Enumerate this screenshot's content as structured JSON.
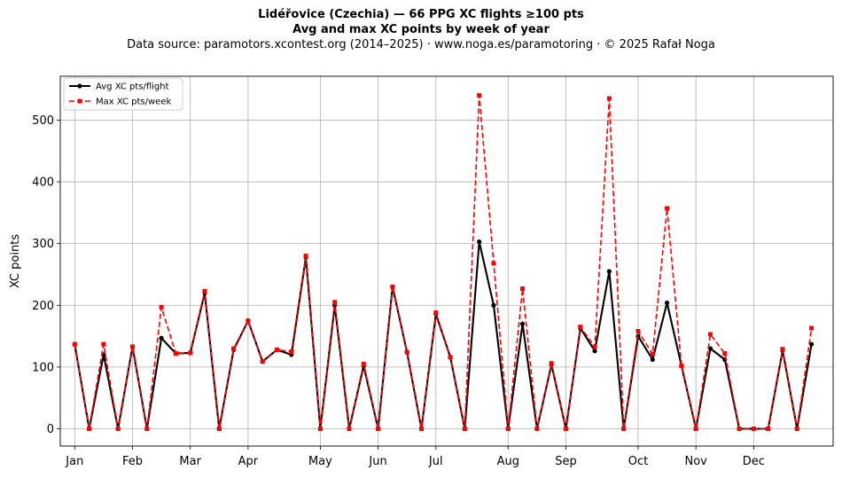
{
  "chart_data": {
    "type": "line",
    "title": "Lidéřovice (Czechia)  —  66 PPG XC flights ≥100 pts",
    "subtitle": "Avg and max XC points by week of year",
    "source": "Data source: paramotors.xcontest.org (2014–2025)  ·  www.noga.es/paramotoring  ·  © 2025 Rafał Noga",
    "xlabel": "",
    "ylabel": "XC points",
    "xlim": [
      -1.0,
      52.5
    ],
    "ylim": [
      -28,
      571
    ],
    "yticks": [
      0,
      100,
      200,
      300,
      400,
      500
    ],
    "xticks": [
      {
        "label": "Jan",
        "x": 0
      },
      {
        "label": "Feb",
        "x": 4
      },
      {
        "label": "Mar",
        "x": 8
      },
      {
        "label": "Apr",
        "x": 12
      },
      {
        "label": "May",
        "x": 17
      },
      {
        "label": "Jun",
        "x": 21
      },
      {
        "label": "Jul",
        "x": 25
      },
      {
        "label": "Aug",
        "x": 30
      },
      {
        "label": "Sep",
        "x": 34
      },
      {
        "label": "Oct",
        "x": 39
      },
      {
        "label": "Nov",
        "x": 43
      },
      {
        "label": "Dec",
        "x": 47
      }
    ],
    "grid": true,
    "legend_position": "top-left",
    "x": [
      0,
      1,
      2,
      3,
      4,
      5,
      6,
      7,
      8,
      9,
      10,
      11,
      12,
      13,
      14,
      15,
      16,
      17,
      18,
      19,
      20,
      21,
      22,
      23,
      24,
      25,
      26,
      27,
      28,
      29,
      30,
      31,
      32,
      33,
      34,
      35,
      36,
      37,
      38,
      39,
      40,
      41,
      42,
      43,
      44,
      45,
      46,
      47,
      48,
      49,
      50,
      51
    ],
    "series": [
      {
        "name": "Avg XC pts/flight",
        "color": "#000000",
        "style": "solid",
        "marker": "circle",
        "values": [
          137,
          0,
          120,
          0,
          133,
          0,
          147,
          122,
          123,
          220,
          0,
          128,
          175,
          109,
          128,
          120,
          278,
          0,
          200,
          0,
          102,
          0,
          230,
          124,
          0,
          186,
          116,
          0,
          303,
          200,
          0,
          170,
          0,
          104,
          0,
          163,
          126,
          255,
          0,
          150,
          112,
          204,
          102,
          0,
          130,
          112,
          0,
          0,
          0,
          127,
          0,
          137
        ]
      },
      {
        "name": "Max XC pts/week",
        "color": "#ff0000",
        "style": "dashed",
        "marker": "square",
        "values": [
          137,
          0,
          137,
          0,
          133,
          0,
          197,
          122,
          123,
          223,
          0,
          130,
          175,
          109,
          128,
          125,
          280,
          0,
          205,
          0,
          105,
          0,
          230,
          124,
          0,
          188,
          116,
          0,
          540,
          268,
          0,
          227,
          0,
          106,
          0,
          165,
          133,
          535,
          0,
          158,
          121,
          357,
          102,
          0,
          153,
          122,
          0,
          0,
          0,
          129,
          0,
          163
        ]
      }
    ]
  }
}
